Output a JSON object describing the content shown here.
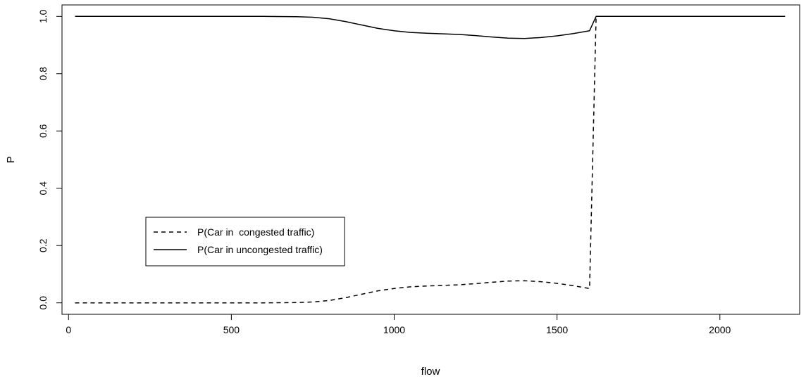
{
  "chart_data": {
    "type": "line",
    "title": "",
    "xlabel": "flow",
    "ylabel": "P",
    "xlim": [
      -20,
      2245
    ],
    "ylim": [
      -0.04,
      1.04
    ],
    "x_ticks": [
      0,
      500,
      1000,
      1500,
      2000
    ],
    "x_tick_labels": [
      "0",
      "500",
      "1000",
      "1500",
      "2000"
    ],
    "y_ticks": [
      0.0,
      0.2,
      0.4,
      0.6,
      0.8,
      1.0
    ],
    "y_tick_labels": [
      "0.0",
      "0.2",
      "0.4",
      "0.6",
      "0.8",
      "1.0"
    ],
    "grid": false,
    "legend_position": "bottom-left",
    "series": [
      {
        "name": "P(Car in  congested traffic)",
        "line_style": "dashed",
        "color": "#000000",
        "x": [
          20,
          100,
          200,
          300,
          400,
          500,
          600,
          700,
          750,
          800,
          850,
          900,
          950,
          1000,
          1050,
          1100,
          1150,
          1200,
          1250,
          1300,
          1350,
          1400,
          1450,
          1500,
          1550,
          1600,
          1620,
          1700,
          1800,
          1900,
          2000,
          2100,
          2200
        ],
        "y": [
          0.0,
          0.0,
          0.0,
          0.0,
          0.0,
          0.0,
          0.0,
          0.001,
          0.003,
          0.008,
          0.018,
          0.03,
          0.042,
          0.05,
          0.056,
          0.059,
          0.061,
          0.063,
          0.067,
          0.072,
          0.076,
          0.077,
          0.074,
          0.068,
          0.06,
          0.05,
          1.0,
          1.0,
          1.0,
          1.0,
          1.0,
          1.0,
          1.0
        ]
      },
      {
        "name": "P(Car in uncongested traffic)",
        "line_style": "solid",
        "color": "#000000",
        "x": [
          20,
          100,
          200,
          300,
          400,
          500,
          600,
          700,
          750,
          800,
          850,
          900,
          950,
          1000,
          1050,
          1100,
          1150,
          1200,
          1250,
          1300,
          1350,
          1400,
          1450,
          1500,
          1550,
          1600,
          1620,
          1700,
          1800,
          1900,
          2000,
          2100,
          2200
        ],
        "y": [
          1.0,
          1.0,
          1.0,
          1.0,
          1.0,
          1.0,
          1.0,
          0.999,
          0.997,
          0.992,
          0.982,
          0.97,
          0.958,
          0.95,
          0.944,
          0.941,
          0.939,
          0.937,
          0.933,
          0.928,
          0.924,
          0.923,
          0.926,
          0.932,
          0.94,
          0.95,
          1.0,
          1.0,
          1.0,
          1.0,
          1.0,
          1.0,
          1.0
        ]
      }
    ]
  }
}
